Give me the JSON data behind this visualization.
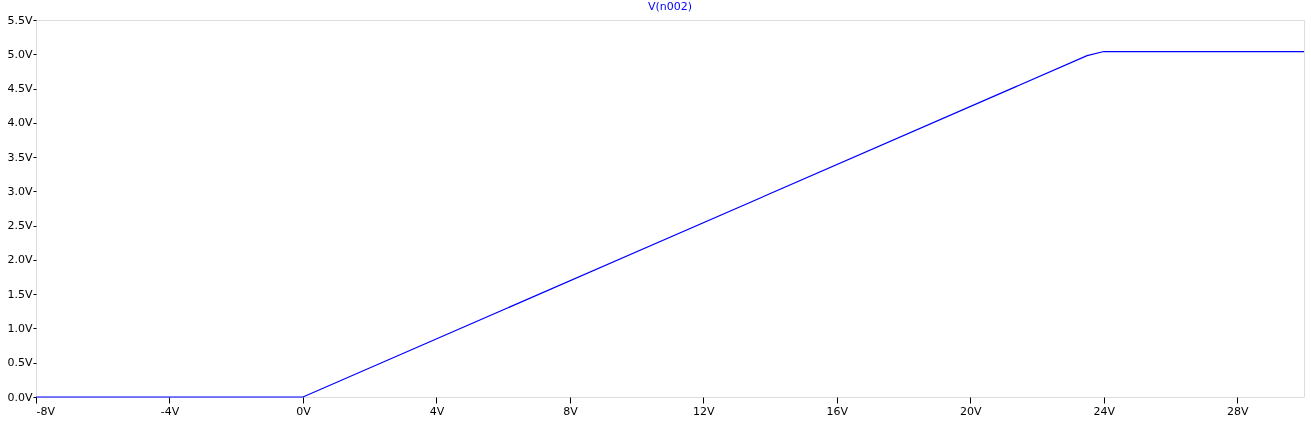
{
  "chart_data": {
    "type": "line",
    "title": "V(n002)",
    "x": [
      -8,
      0,
      23.5,
      24,
      30
    ],
    "series": [
      {
        "color": "#0000ff",
        "values": [
          0,
          0,
          4.98,
          5.04,
          5.04
        ]
      }
    ],
    "xlim": [
      -8,
      30
    ],
    "xticks": [
      {
        "value": -8,
        "label": "-8V"
      },
      {
        "value": -4,
        "label": "-4V"
      },
      {
        "value": 0,
        "label": "0V"
      },
      {
        "value": 4,
        "label": "4V"
      },
      {
        "value": 8,
        "label": "8V"
      },
      {
        "value": 12,
        "label": "12V"
      },
      {
        "value": 16,
        "label": "16V"
      },
      {
        "value": 20,
        "label": "20V"
      },
      {
        "value": 24,
        "label": "24V"
      },
      {
        "value": 28,
        "label": "28V"
      }
    ],
    "ylim": [
      0,
      5.5
    ],
    "yticks": [
      {
        "value": 0,
        "label": "0.0V"
      },
      {
        "value": 0.5,
        "label": "0.5V"
      },
      {
        "value": 1,
        "label": "1.0V"
      },
      {
        "value": 1.5,
        "label": "1.5V"
      },
      {
        "value": 2,
        "label": "2.0V"
      },
      {
        "value": 2.5,
        "label": "2.5V"
      },
      {
        "value": 3,
        "label": "3.0V"
      },
      {
        "value": 3.5,
        "label": "3.5V"
      },
      {
        "value": 4,
        "label": "4.0V"
      },
      {
        "value": 4.5,
        "label": "4.5V"
      },
      {
        "value": 5,
        "label": "5.0V"
      },
      {
        "value": 5.5,
        "label": "5.5V"
      }
    ],
    "grid": false,
    "marker": "none",
    "line_style": "solid"
  }
}
